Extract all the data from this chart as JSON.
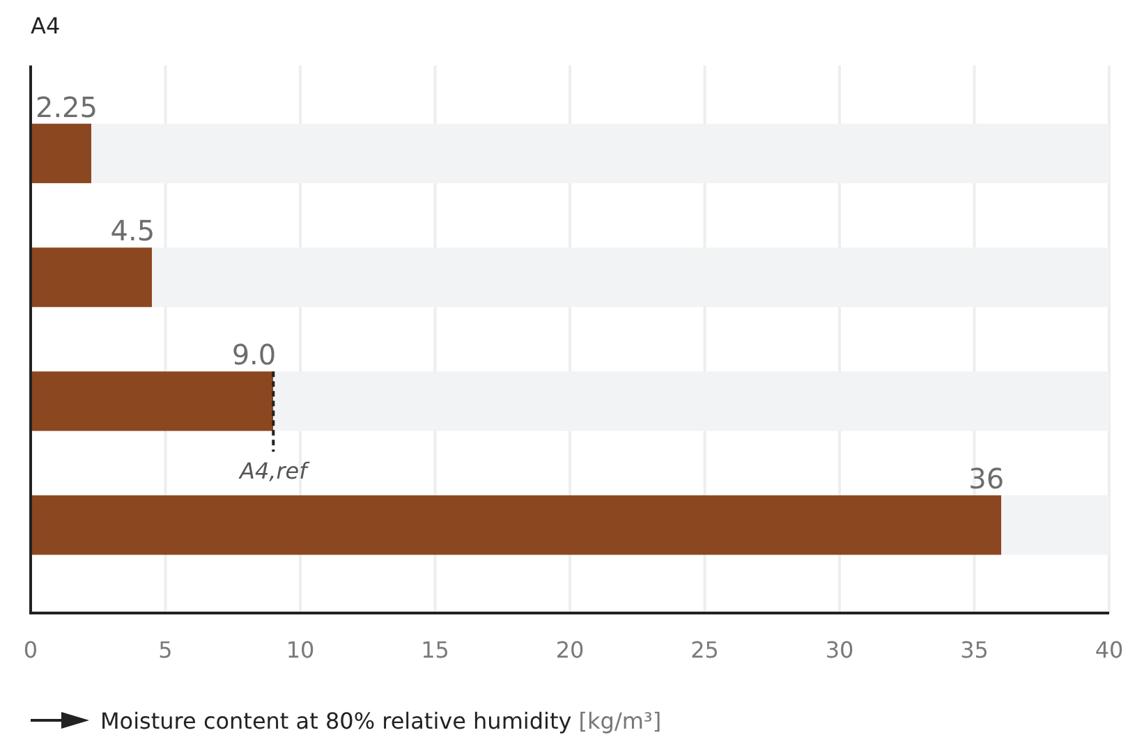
{
  "chart_data": {
    "type": "bar",
    "title": "A4",
    "orientation": "horizontal",
    "categories": [
      null,
      null,
      null,
      null
    ],
    "stacked": true,
    "series": [
      {
        "color": "#8b4720",
        "values": [
          2.25,
          4.5,
          9.0,
          36
        ],
        "value_labels": [
          "2.25",
          "4.5",
          "9.0",
          "36"
        ]
      },
      {
        "color": "#f2f3f5",
        "values": [
          37.75,
          35.5,
          31,
          4
        ]
      }
    ],
    "xlim": [
      0,
      40
    ],
    "xticks": [
      0,
      5,
      10,
      15,
      20,
      25,
      30,
      35,
      40
    ],
    "grid": "x",
    "xlabel": "Moisture content at 80% relative humidity [kg/m³]",
    "ref_lines": [
      {
        "axis": "x",
        "value": 9,
        "label": "A4,ref",
        "line_style": "dashed",
        "color": "#222222"
      }
    ]
  }
}
